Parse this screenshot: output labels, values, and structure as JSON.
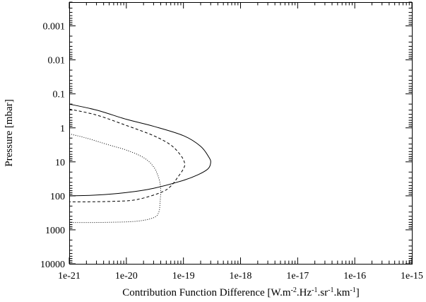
{
  "chart_data": {
    "type": "line",
    "title": "",
    "xlabel": {
      "parts": [
        {
          "text": "Contribution Function Difference [W.m",
          "sup": false
        },
        {
          "text": "-2",
          "sup": true
        },
        {
          "text": ".Hz",
          "sup": false
        },
        {
          "text": "-1",
          "sup": true
        },
        {
          "text": ".sr",
          "sup": false
        },
        {
          "text": "-1",
          "sup": true
        },
        {
          "text": ".km",
          "sup": false
        },
        {
          "text": "-1",
          "sup": true
        },
        {
          "text": "]",
          "sup": false
        }
      ]
    },
    "ylabel": "Pressure [mbar]",
    "x_scale": "log",
    "y_scale": "log",
    "y_inverted": true,
    "xlim": [
      1e-21,
      1e-15
    ],
    "ylim": [
      0.0002,
      10000
    ],
    "x_ticks": [
      {
        "value": 1e-21,
        "label": "1e-21"
      },
      {
        "value": 1e-20,
        "label": "1e-20"
      },
      {
        "value": 1e-19,
        "label": "1e-19"
      },
      {
        "value": 1e-18,
        "label": "1e-18"
      },
      {
        "value": 1e-17,
        "label": "1e-17"
      },
      {
        "value": 1e-16,
        "label": "1e-16"
      },
      {
        "value": 1e-15,
        "label": "1e-15"
      }
    ],
    "y_ticks": [
      {
        "value": 0.001,
        "label": "0.001"
      },
      {
        "value": 0.01,
        "label": "0.01"
      },
      {
        "value": 0.1,
        "label": "0.1"
      },
      {
        "value": 1,
        "label": "1"
      },
      {
        "value": 10,
        "label": "10"
      },
      {
        "value": 100,
        "label": "100"
      },
      {
        "value": 1000,
        "label": "1000"
      },
      {
        "value": 10000,
        "label": "10000"
      }
    ],
    "grid": false,
    "legend": "none",
    "series": [
      {
        "style": "solid",
        "color": "#000000",
        "points": [
          [
            1e-21,
            0.2
          ],
          [
            3e-21,
            0.3
          ],
          [
            1e-20,
            0.56
          ],
          [
            3e-20,
            0.9
          ],
          [
            1e-19,
            1.7
          ],
          [
            2e-19,
            3.5
          ],
          [
            2.8e-19,
            7.4
          ],
          [
            3e-19,
            10.5
          ],
          [
            2.7e-19,
            16
          ],
          [
            1.8e-19,
            24
          ],
          [
            1e-19,
            35
          ],
          [
            3e-20,
            60
          ],
          [
            1e-20,
            80
          ],
          [
            3e-21,
            95
          ],
          [
            1e-21,
            100
          ]
        ]
      },
      {
        "style": "dashed",
        "color": "#000000",
        "points": [
          [
            1e-21,
            0.28
          ],
          [
            3e-21,
            0.42
          ],
          [
            1e-20,
            0.85
          ],
          [
            3e-20,
            1.7
          ],
          [
            6e-20,
            3.2
          ],
          [
            9e-20,
            6.5
          ],
          [
            1.05e-19,
            11
          ],
          [
            1e-19,
            16
          ],
          [
            8e-20,
            28
          ],
          [
            6e-20,
            52
          ],
          [
            4e-20,
            80
          ],
          [
            1.5e-20,
            130
          ],
          [
            6e-21,
            145
          ],
          [
            2e-21,
            150
          ],
          [
            1e-21,
            150
          ]
        ]
      },
      {
        "style": "dotted",
        "color": "#000000",
        "points": [
          [
            1e-21,
            1.5
          ],
          [
            2e-21,
            2.0
          ],
          [
            5e-21,
            3.2
          ],
          [
            1e-20,
            4.5
          ],
          [
            2e-20,
            7.5
          ],
          [
            3e-20,
            14
          ],
          [
            3.7e-20,
            30
          ],
          [
            4e-20,
            65
          ],
          [
            3.9e-20,
            150
          ],
          [
            3.7e-20,
            300
          ],
          [
            3e-20,
            440
          ],
          [
            1.5e-20,
            560
          ],
          [
            5e-21,
            600
          ],
          [
            2e-21,
            610
          ],
          [
            1e-21,
            610
          ]
        ]
      }
    ]
  }
}
